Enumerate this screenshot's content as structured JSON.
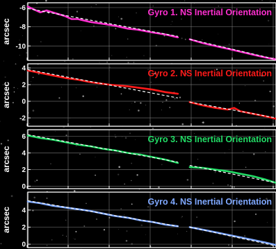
{
  "chart_data": [
    {
      "type": "line",
      "title": "Gyro 1. NS Inertial Orientation",
      "ylabel": "arcsec",
      "ylim": [
        -11.5,
        -5.5
      ],
      "yticks": [
        -6,
        -8,
        -10
      ],
      "color": "#ff2fd0",
      "grid": true,
      "series": [
        {
          "name": "",
          "segments": [
            {
              "x": [
                0,
                10,
                20,
                30,
                50,
                60,
                70,
                80,
                100,
                120,
                140,
                160,
                175,
                200,
                220,
                240
              ],
              "y": [
                -5.9,
                -6.2,
                -6.5,
                -6.3,
                -6.7,
                -6.9,
                -7.2,
                -7.2,
                -7.5,
                -7.7,
                -7.9,
                -8.2,
                -8.3,
                -8.6,
                -8.8,
                -9.1
              ]
            },
            {
              "x": [
                259,
                280,
                300,
                320,
                340,
                360,
                380,
                397
              ],
              "y": [
                -9.3,
                -9.7,
                -10.0,
                -10.3,
                -10.6,
                -10.9,
                -11.2,
                -11.4
              ]
            }
          ]
        },
        {
          "name": "",
          "dashed": true,
          "segments": [
            {
              "x": [
                0,
                240
              ],
              "y": [
                -6.1,
                -9.0
              ]
            },
            {
              "x": [
                259,
                397
              ],
              "y": [
                -9.3,
                -11.4
              ]
            }
          ]
        }
      ]
    },
    {
      "type": "line",
      "title": "Gyro 2. NS Inertial Orientation",
      "ylabel": "arcsec",
      "ylim": [
        -3,
        4.5
      ],
      "yticks": [
        4,
        2,
        0,
        -2
      ],
      "color": "#ff1a1a",
      "grid": true,
      "series": [
        {
          "name": "",
          "segments": [
            {
              "x": [
                0,
                20,
                40,
                60,
                80,
                100,
                130,
                160,
                180,
                200,
                220,
                240
              ],
              "y": [
                3.7,
                3.4,
                3.1,
                2.8,
                2.6,
                2.3,
                2.0,
                1.8,
                1.6,
                1.4,
                1.1,
                0.9
              ]
            },
            {
              "x": [
                259,
                280,
                300,
                320,
                330,
                340,
                360,
                380,
                397
              ],
              "y": [
                -0.1,
                -0.5,
                -0.8,
                -1.0,
                -0.8,
                -1.2,
                -1.5,
                -1.8,
                -2.1
              ]
            }
          ]
        },
        {
          "name": "",
          "dashed": true,
          "segments": [
            {
              "x": [
                0,
                240
              ],
              "y": [
                3.8,
                0.4
              ]
            },
            {
              "x": [
                259,
                397
              ],
              "y": [
                -0.1,
                -2.0
              ]
            }
          ]
        }
      ]
    },
    {
      "type": "line",
      "title": "Gyro 3. NS Inertial Orientation",
      "ylabel": "arcsec",
      "ylim": [
        -0.3,
        6.8
      ],
      "yticks": [
        6,
        4,
        2,
        0
      ],
      "color": "#22dd66",
      "grid": true,
      "series": [
        {
          "name": "",
          "segments": [
            {
              "x": [
                0,
                20,
                40,
                60,
                80,
                100,
                120,
                140,
                160,
                180,
                200,
                220,
                240
              ],
              "y": [
                6.1,
                5.8,
                5.6,
                5.3,
                5.0,
                4.8,
                4.5,
                4.3,
                4.0,
                3.8,
                3.5,
                3.2,
                2.8
              ]
            },
            {
              "x": [
                259,
                280,
                300,
                320,
                340,
                360,
                380,
                397
              ],
              "y": [
                2.3,
                2.2,
                2.0,
                1.8,
                1.5,
                1.2,
                0.8,
                0.4
              ]
            }
          ]
        },
        {
          "name": "",
          "dashed": true,
          "segments": [
            {
              "x": [
                0,
                240
              ],
              "y": [
                6.2,
                2.9
              ]
            },
            {
              "x": [
                259,
                397
              ],
              "y": [
                2.5,
                0.4
              ]
            }
          ]
        }
      ]
    },
    {
      "type": "line",
      "title": "Gyro 4. NS Inertial Orientation",
      "ylabel": "arcsec",
      "ylim": [
        -0.4,
        6.1
      ],
      "yticks": [
        4,
        2,
        0
      ],
      "color": "#7fa8ff",
      "grid": true,
      "series": [
        {
          "name": "",
          "segments": [
            {
              "x": [
                0,
                20,
                40,
                60,
                80,
                100,
                120,
                140,
                160,
                180,
                200,
                220,
                240
              ],
              "y": [
                5.0,
                4.8,
                4.5,
                4.3,
                4.1,
                3.9,
                3.6,
                3.3,
                3.1,
                2.8,
                2.6,
                2.3,
                2.1
              ]
            },
            {
              "x": [
                259,
                280,
                300,
                320,
                340,
                360,
                380,
                397
              ],
              "y": [
                2.0,
                1.7,
                1.4,
                1.1,
                0.8,
                0.5,
                0.2,
                -0.1
              ]
            }
          ]
        },
        {
          "name": "",
          "dashed": true,
          "segments": [
            {
              "x": [
                0,
                240
              ],
              "y": [
                5.1,
                2.1
              ]
            },
            {
              "x": [
                259,
                397
              ],
              "y": [
                2.0,
                -0.2
              ]
            }
          ]
        }
      ]
    }
  ]
}
